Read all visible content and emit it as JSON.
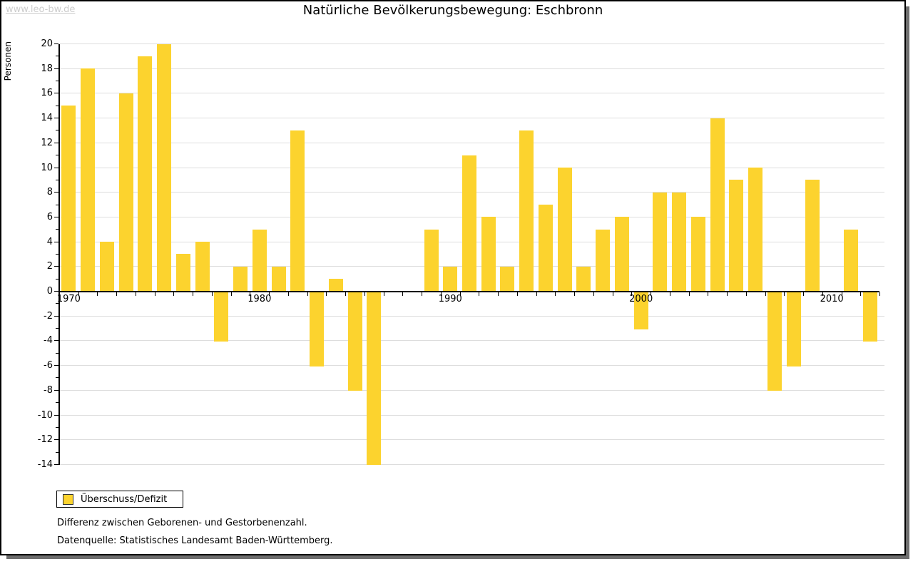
{
  "watermark": "www.leo-bw.de",
  "header": {
    "title": "Natürliche Bevölkerungsbewegung: Eschbronn"
  },
  "legend": {
    "label": "Überschuss/Defizit"
  },
  "footnotes": [
    "Differenz zwischen Geborenen- und Gestorbenenzahl.",
    "Datenquelle: Statistisches Landesamt Baden-Württemberg."
  ],
  "colors": {
    "bar": "#fcd32e",
    "grid": "#dddddd",
    "axis": "#000000",
    "watermark": "#cccccc",
    "frame_shadow": "#6e6e6e"
  },
  "chart_data": {
    "type": "bar",
    "title": "Natürliche Bevölkerungsbewegung: Eschbronn",
    "xlabel": "",
    "ylabel": "Personen",
    "ylim": [
      -14,
      20
    ],
    "y_tick_step": 2,
    "grid": true,
    "legend_entry": "Überschuss/Defizit",
    "legend_position": "bottom-left",
    "x_axis_decade_labels": [
      "1970",
      "1980",
      "1990",
      "2000",
      "2010"
    ],
    "years": [
      1970,
      1971,
      1972,
      1973,
      1974,
      1975,
      1976,
      1977,
      1978,
      1979,
      1980,
      1981,
      1982,
      1983,
      1984,
      1985,
      1986,
      1987,
      1988,
      1989,
      1990,
      1991,
      1992,
      1993,
      1994,
      1995,
      1996,
      1997,
      1998,
      1999,
      2000,
      2001,
      2002,
      2003,
      2004,
      2005,
      2006,
      2007,
      2008,
      2009,
      2010,
      2011,
      2012
    ],
    "values": [
      15,
      18,
      4,
      16,
      19,
      20,
      3,
      4,
      -4,
      2,
      5,
      2,
      13,
      -6,
      1,
      -8,
      -14,
      0,
      0,
      5,
      2,
      11,
      6,
      2,
      13,
      7,
      10,
      2,
      5,
      6,
      -3,
      8,
      8,
      6,
      14,
      9,
      10,
      -8,
      -6,
      9,
      0,
      5,
      -4
    ]
  }
}
